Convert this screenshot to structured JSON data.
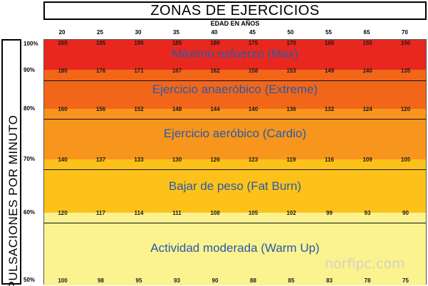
{
  "chart_data": {
    "type": "table",
    "title": "ZONAS DE EJERCICIOS",
    "xlabel": "EDAD EN AÑOS",
    "ylabel": "PULSACIONES POR MINUTO",
    "ages": [
      "20",
      "25",
      "30",
      "35",
      "40",
      "45",
      "50",
      "55",
      "65",
      "70"
    ],
    "percent_levels": [
      "100%",
      "90%",
      "80%",
      "70%",
      "60%",
      "50%"
    ],
    "heart_rates": [
      {
        "level": "100%",
        "values": [
          "200",
          "195",
          "190",
          "185",
          "180",
          "175",
          "170",
          "165",
          "155",
          "150"
        ]
      },
      {
        "level": "90%",
        "values": [
          "180",
          "176",
          "171",
          "167",
          "162",
          "158",
          "153",
          "149",
          "140",
          "135"
        ]
      },
      {
        "level": "80%",
        "values": [
          "160",
          "156",
          "152",
          "148",
          "144",
          "140",
          "136",
          "132",
          "124",
          "120"
        ]
      },
      {
        "level": "70%",
        "values": [
          "140",
          "137",
          "133",
          "130",
          "126",
          "123",
          "119",
          "116",
          "109",
          "105"
        ]
      },
      {
        "level": "60%",
        "values": [
          "120",
          "117",
          "114",
          "111",
          "108",
          "105",
          "102",
          "99",
          "93",
          "90"
        ]
      },
      {
        "level": "50%",
        "values": [
          "100",
          "98",
          "95",
          "93",
          "90",
          "88",
          "85",
          "83",
          "78",
          "75"
        ]
      }
    ],
    "zones": [
      {
        "name": "Máximo esfuerzo (Max)",
        "from": "90%",
        "to": "100%",
        "color": "#e8281e"
      },
      {
        "name": "Ejercicio anaeróbico (Extreme)",
        "from": "80%",
        "to": "90%",
        "color": "#f2661a"
      },
      {
        "name": "Ejercicio aeróbico (Cardio)",
        "from": "70%",
        "to": "80%",
        "color": "#f7951c"
      },
      {
        "name": "Bajar de peso (Fat Burn)",
        "from": "60%",
        "to": "70%",
        "color": "#fcc21a"
      },
      {
        "name": "Actividad moderada (Warm Up)",
        "from": "50%",
        "to": "60%",
        "color": "#fbf290"
      }
    ]
  },
  "watermark": "norfipc.com"
}
